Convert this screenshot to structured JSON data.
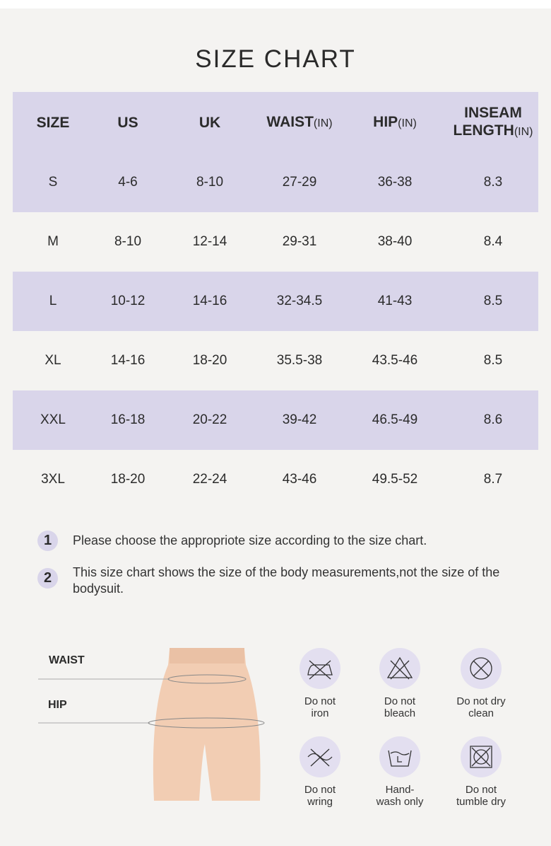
{
  "title": "SIZE CHART",
  "table": {
    "headers": [
      {
        "label": "SIZE"
      },
      {
        "label": "US"
      },
      {
        "label": "UK"
      },
      {
        "label": "WAIST",
        "unit": "(IN)"
      },
      {
        "label": "HIP",
        "unit": "(IN)"
      },
      {
        "label": "INSEAM LENGTH",
        "unit": "(IN)"
      }
    ],
    "rows": [
      [
        "S",
        "4-6",
        "8-10",
        "27-29",
        "36-38",
        "8.3"
      ],
      [
        "M",
        "8-10",
        "12-14",
        "29-31",
        "38-40",
        "8.4"
      ],
      [
        "L",
        "10-12",
        "14-16",
        "32-34.5",
        "41-43",
        "8.5"
      ],
      [
        "XL",
        "14-16",
        "18-20",
        "35.5-38",
        "43.5-46",
        "8.5"
      ],
      [
        "XXL",
        "16-18",
        "20-22",
        "39-42",
        "46.5-49",
        "8.6"
      ],
      [
        "3XL",
        "18-20",
        "22-24",
        "43-46",
        "49.5-52",
        "8.7"
      ]
    ]
  },
  "notes": [
    {
      "number": "1",
      "text": "Please choose the appropriote size according to the size chart."
    },
    {
      "number": "2",
      "text": "This size chart shows the size of the body measurements,not the size of the bodysuit."
    }
  ],
  "diagram": {
    "waist": "WAIST",
    "hip": "HIP"
  },
  "care": [
    "Do not iron",
    "Do not bleach",
    "Do not dry clean",
    "Do not wring",
    "Hand-wash only",
    "Do not tumble dry"
  ]
}
